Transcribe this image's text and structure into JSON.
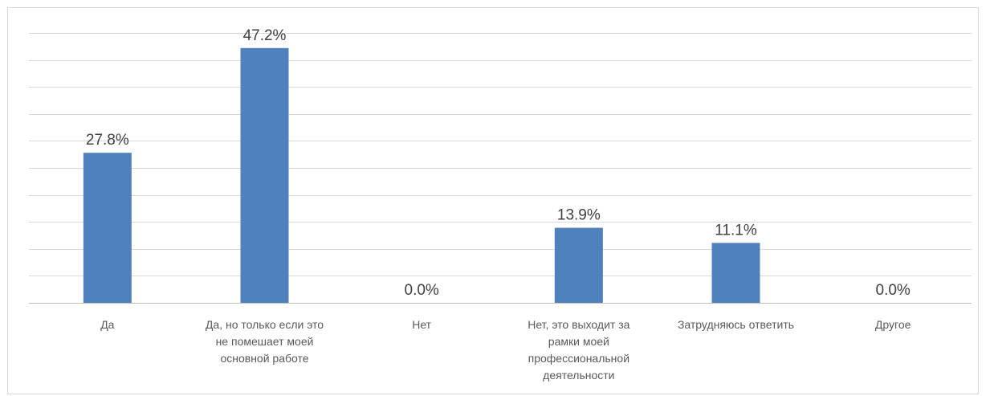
{
  "chart_data": {
    "type": "bar",
    "title": "",
    "xlabel": "",
    "ylabel": "",
    "categories": [
      [
        "Да"
      ],
      [
        "Да, но только если это",
        "не помешает моей",
        "основной работе"
      ],
      [
        "Нет"
      ],
      [
        "Нет, это выходит за",
        "рамки моей",
        "профессиональной",
        "деятельности"
      ],
      [
        "Затрудняюсь ответить"
      ],
      [
        "Другое"
      ]
    ],
    "values": [
      27.8,
      47.2,
      0.0,
      13.9,
      11.1,
      0.0
    ],
    "data_labels": [
      "27.8%",
      "47.2%",
      "0.0%",
      "13.9%",
      "11.1%",
      "0.0%"
    ],
    "ylim": [
      0,
      50
    ],
    "gridline_step": 5,
    "grid": true,
    "legend": "none",
    "bar_color": "#4f81bd"
  }
}
